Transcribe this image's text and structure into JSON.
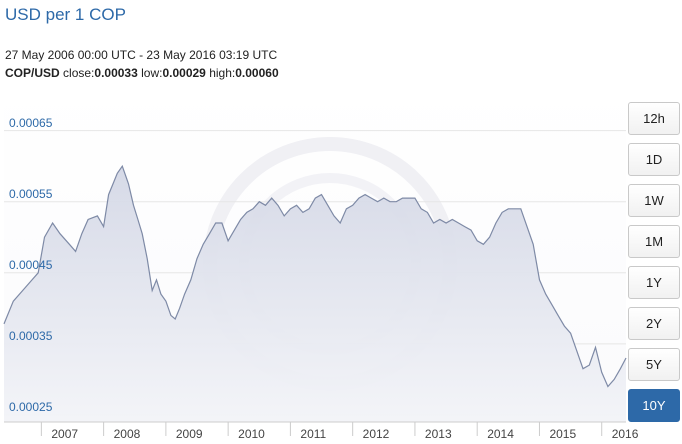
{
  "title": "USD per 1 COP",
  "date_range": "27 May 2006 00:00 UTC - 23 May 2016 03:19 UTC",
  "stats": {
    "pair": "COP/USD",
    "close_label": "close:",
    "close_value": "0.00033",
    "low_label": "low:",
    "low_value": "0.00029",
    "high_label": "high:",
    "high_value": "0.00060"
  },
  "range_buttons": [
    "12h",
    "1D",
    "1W",
    "1M",
    "1Y",
    "2Y",
    "5Y",
    "10Y"
  ],
  "active_range": "10Y",
  "colors": {
    "accent": "#2d69a8",
    "line": "#7e8aa6",
    "fill_top": "#d4d8e6",
    "fill_bottom": "#f3f4f8",
    "grid": "#e6e6e6",
    "watermark": "#f0f0f4"
  },
  "chart_data": {
    "type": "area",
    "x_ticks": [
      "2007",
      "2008",
      "2009",
      "2010",
      "2011",
      "2012",
      "2013",
      "2014",
      "2015",
      "2016"
    ],
    "y_ticks": [
      "0.00025",
      "0.00035",
      "0.00045",
      "0.00055",
      "0.00065"
    ],
    "ylim": [
      0.00024,
      0.00071
    ],
    "xlim": [
      2006.4,
      2016.39
    ],
    "series": [
      {
        "x": [
          2006.4,
          2006.55,
          2006.7,
          2006.85,
          2006.95,
          2007.05,
          2007.18,
          2007.3,
          2007.45,
          2007.55,
          2007.65,
          2007.75,
          2007.9,
          2008.0,
          2008.08,
          2008.15,
          2008.22,
          2008.3,
          2008.4,
          2008.48,
          2008.55,
          2008.62,
          2008.7,
          2008.78,
          2008.85,
          2008.92,
          2009.0,
          2009.08,
          2009.15,
          2009.22,
          2009.3,
          2009.4,
          2009.5,
          2009.6,
          2009.7,
          2009.8,
          2009.9,
          2010.0,
          2010.1,
          2010.2,
          2010.3,
          2010.4,
          2010.5,
          2010.6,
          2010.7,
          2010.8,
          2010.9,
          2011.0,
          2011.1,
          2011.2,
          2011.3,
          2011.4,
          2011.5,
          2011.6,
          2011.7,
          2011.8,
          2011.9,
          2012.0,
          2012.1,
          2012.2,
          2012.3,
          2012.4,
          2012.5,
          2012.6,
          2012.7,
          2012.8,
          2012.9,
          2013.0,
          2013.1,
          2013.2,
          2013.3,
          2013.4,
          2013.5,
          2013.6,
          2013.7,
          2013.8,
          2013.9,
          2014.0,
          2014.1,
          2014.2,
          2014.3,
          2014.4,
          2014.5,
          2014.6,
          2014.7,
          2014.8,
          2014.9,
          2015.0,
          2015.1,
          2015.2,
          2015.3,
          2015.4,
          2015.5,
          2015.6,
          2015.7,
          2015.8,
          2015.9,
          2016.0,
          2016.1,
          2016.2,
          2016.3,
          2016.39
        ],
        "y": [
          0.000378,
          0.00041,
          0.000425,
          0.00044,
          0.00045,
          0.0005,
          0.00052,
          0.000505,
          0.00049,
          0.00048,
          0.000505,
          0.000525,
          0.00053,
          0.000515,
          0.00056,
          0.000575,
          0.00059,
          0.0006,
          0.000575,
          0.000545,
          0.000525,
          0.000505,
          0.00047,
          0.000425,
          0.00044,
          0.00042,
          0.00041,
          0.00039,
          0.000385,
          0.0004,
          0.00042,
          0.00044,
          0.00047,
          0.00049,
          0.000505,
          0.00052,
          0.00052,
          0.000495,
          0.00051,
          0.000525,
          0.000535,
          0.00054,
          0.00055,
          0.000545,
          0.000555,
          0.000545,
          0.00053,
          0.00054,
          0.000545,
          0.000535,
          0.00054,
          0.000555,
          0.00056,
          0.000545,
          0.00053,
          0.00052,
          0.00054,
          0.000545,
          0.000555,
          0.00056,
          0.000555,
          0.00055,
          0.000555,
          0.00055,
          0.00055,
          0.000555,
          0.000555,
          0.000555,
          0.00054,
          0.000535,
          0.00052,
          0.000525,
          0.00052,
          0.000525,
          0.00052,
          0.000515,
          0.00051,
          0.000495,
          0.00049,
          0.0005,
          0.00052,
          0.000535,
          0.00054,
          0.00054,
          0.00054,
          0.000515,
          0.00049,
          0.00044,
          0.00042,
          0.000405,
          0.00039,
          0.000375,
          0.000365,
          0.00034,
          0.000315,
          0.00032,
          0.000345,
          0.00031,
          0.00029,
          0.0003,
          0.000315,
          0.00033
        ]
      }
    ]
  }
}
